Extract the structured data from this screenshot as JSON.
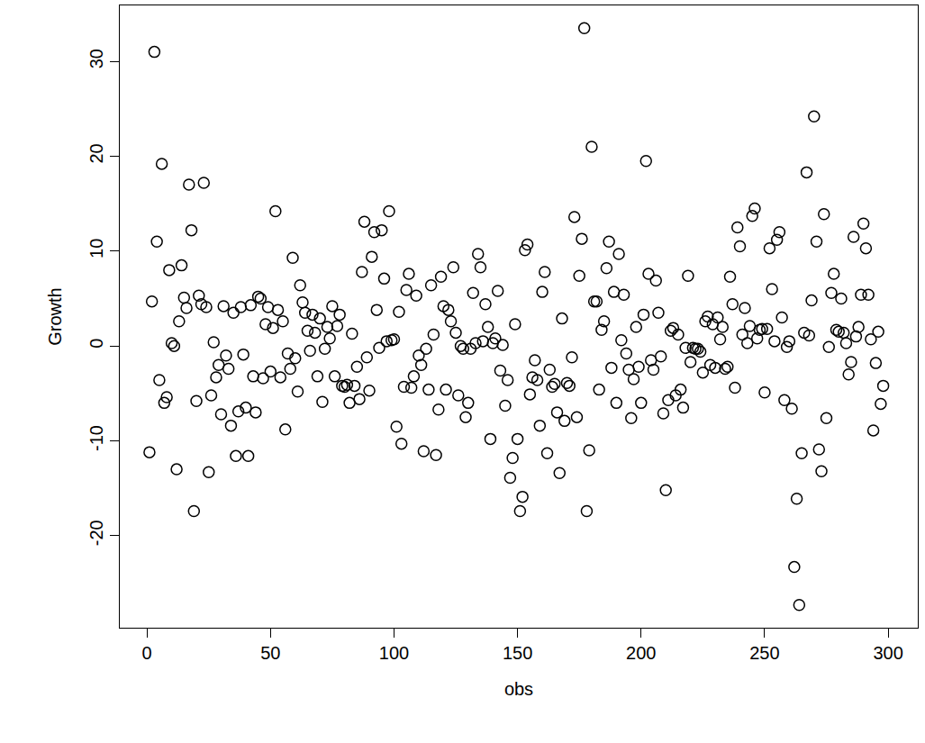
{
  "chart_data": {
    "type": "scatter",
    "x_label": "obs",
    "y_label": "Growth",
    "x": [
      1,
      2,
      3,
      4,
      5,
      6,
      7,
      8,
      9,
      10,
      11,
      12,
      13,
      14,
      15,
      16,
      17,
      18,
      19,
      20,
      21,
      22,
      23,
      24,
      25,
      26,
      27,
      28,
      29,
      30,
      31,
      32,
      33,
      34,
      35,
      36,
      37,
      38,
      39,
      40,
      41,
      42,
      43,
      44,
      45,
      46,
      47,
      48,
      49,
      50,
      51,
      52,
      53,
      54,
      55,
      56,
      57,
      58,
      59,
      60,
      61,
      62,
      63,
      64,
      65,
      66,
      67,
      68,
      69,
      70,
      71,
      72,
      73,
      74,
      75,
      76,
      77,
      78,
      79,
      80,
      81,
      82,
      83,
      84,
      85,
      86,
      87,
      88,
      89,
      90,
      91,
      92,
      93,
      94,
      95,
      96,
      97,
      98,
      99,
      100,
      101,
      102,
      103,
      104,
      105,
      106,
      107,
      108,
      109,
      110,
      111,
      112,
      113,
      114,
      115,
      116,
      117,
      118,
      119,
      120,
      121,
      122,
      123,
      124,
      125,
      126,
      127,
      128,
      129,
      130,
      131,
      132,
      133,
      134,
      135,
      136,
      137,
      138,
      139,
      140,
      141,
      142,
      143,
      144,
      145,
      146,
      147,
      148,
      149,
      150,
      151,
      152,
      153,
      154,
      155,
      156,
      157,
      158,
      159,
      160,
      161,
      162,
      163,
      164,
      165,
      166,
      167,
      168,
      169,
      170,
      171,
      172,
      173,
      174,
      175,
      176,
      177,
      178,
      179,
      180,
      181,
      182,
      183,
      184,
      185,
      186,
      187,
      188,
      189,
      190,
      191,
      192,
      193,
      194,
      195,
      196,
      197,
      198,
      199,
      200,
      201,
      202,
      203,
      204,
      205,
      206,
      207,
      208,
      209,
      210,
      211,
      212,
      213,
      214,
      215,
      216,
      217,
      218,
      219,
      220,
      221,
      222,
      223,
      224,
      225,
      226,
      227,
      228,
      229,
      230,
      231,
      232,
      233,
      234,
      235,
      236,
      237,
      238,
      239,
      240,
      241,
      242,
      243,
      244,
      245,
      246,
      247,
      248,
      249,
      250,
      251,
      252,
      253,
      254,
      255,
      256,
      257,
      258,
      259,
      260,
      261,
      262,
      263,
      264,
      265,
      266,
      267,
      268,
      269,
      270,
      271,
      272,
      273,
      274,
      275,
      276,
      277,
      278,
      279,
      280,
      281,
      282,
      283,
      284,
      285,
      286,
      287,
      288,
      289,
      290,
      291,
      292,
      293,
      294,
      295,
      296,
      297,
      298
    ],
    "values": [
      -11.2,
      4.7,
      31,
      11,
      -3.6,
      19.2,
      -6,
      -5.4,
      8,
      0.3,
      0,
      -13,
      2.6,
      8.5,
      5.1,
      4,
      17,
      12.2,
      -17.4,
      -5.8,
      5.3,
      4.4,
      17.2,
      4.1,
      -13.3,
      -5.2,
      0.4,
      -3.3,
      -2,
      -7.2,
      4.2,
      -1,
      -2.4,
      -8.4,
      3.5,
      -11.6,
      -6.9,
      4.1,
      -0.9,
      -6.5,
      -11.6,
      4.3,
      -3.2,
      -7,
      5.2,
      5,
      -3.4,
      2.3,
      4.1,
      -2.7,
      1.9,
      14.2,
      3.8,
      -3.3,
      2.6,
      -8.8,
      -0.8,
      -2.4,
      9.3,
      -1.3,
      -4.8,
      6.4,
      4.6,
      3.5,
      1.6,
      -0.5,
      3.3,
      1.4,
      -3.2,
      2.9,
      -5.9,
      -0.3,
      2,
      0.8,
      4.2,
      -3.2,
      2.1,
      3.3,
      -4.2,
      -4.3,
      -4.1,
      -6,
      1.3,
      -4.2,
      -2.2,
      -5.6,
      7.8,
      13.1,
      -1.2,
      -4.7,
      9.4,
      12,
      3.8,
      -0.2,
      12.2,
      7.1,
      0.5,
      14.2,
      0.6,
      0.7,
      -8.5,
      3.6,
      -10.3,
      -4.3,
      5.9,
      7.6,
      -4.4,
      -3.2,
      5.3,
      -1,
      -2,
      -11.1,
      -0.3,
      -4.6,
      6.4,
      1.2,
      -11.5,
      -6.7,
      7.3,
      4.2,
      -4.6,
      3.8,
      2.6,
      8.3,
      1.4,
      -5.2,
      0,
      -0.3,
      -7.5,
      -6,
      -0.3,
      5.6,
      0.3,
      9.7,
      8.3,
      0.5,
      4.4,
      2,
      -9.8,
      0.3,
      0.8,
      5.8,
      -2.6,
      0.1,
      -6.3,
      -3.6,
      -13.9,
      -11.8,
      2.3,
      -9.8,
      -17.4,
      -15.9,
      10.1,
      10.7,
      -5.1,
      -3.3,
      -1.5,
      -3.6,
      -8.4,
      5.7,
      7.8,
      -11.3,
      -2.5,
      -4.3,
      -4,
      -7,
      -13.4,
      2.9,
      -7.9,
      -3.9,
      -4.2,
      -1.2,
      13.6,
      -7.5,
      7.4,
      11.3,
      33.5,
      -17.4,
      -11,
      21,
      4.7,
      4.7,
      -4.6,
      1.7,
      2.6,
      8.2,
      11,
      -2.3,
      5.7,
      -6,
      9.7,
      0.6,
      5.4,
      -0.8,
      -2.5,
      -7.6,
      -3.5,
      2,
      -2.2,
      -6,
      3.3,
      19.5,
      7.6,
      -1.5,
      -2.5,
      6.9,
      3.5,
      -1.1,
      -7.1,
      -15.2,
      -5.7,
      1.6,
      1.9,
      -5.2,
      1.2,
      -4.6,
      -6.5,
      -0.2,
      7.4,
      -1.7,
      -0.2,
      -0.3,
      -0.3,
      -0.6,
      -2.8,
      2.6,
      3.1,
      -2,
      2.3,
      -2.3,
      3,
      0.7,
      2,
      -2.4,
      -2.2,
      7.3,
      4.4,
      -4.4,
      12.5,
      10.5,
      1.2,
      4,
      0.3,
      2.1,
      13.7,
      14.5,
      0.8,
      1.7,
      1.8,
      -4.9,
      1.8,
      10.3,
      6,
      0.5,
      11.2,
      12,
      3,
      -5.7,
      -0.1,
      0.5,
      -6.6,
      -23.3,
      -16.1,
      -27.3,
      -11.3,
      1.4,
      18.3,
      1.1,
      4.8,
      24.2,
      11,
      -10.9,
      -13.2,
      13.9,
      -7.6,
      -0.1,
      5.6,
      7.6,
      1.7,
      1.5,
      5,
      1.4,
      0.3,
      -3,
      -1.7,
      11.5,
      1,
      2,
      5.4,
      12.9,
      10.3,
      5.4,
      0.7,
      -8.9,
      -1.8,
      1.5,
      -6.1,
      -4.2
    ],
    "xlim": [
      -11,
      312
    ],
    "ylim": [
      -29.7,
      35.9
    ],
    "xticks": [
      0,
      50,
      100,
      150,
      200,
      250,
      300
    ],
    "yticks": [
      -20,
      -10,
      0,
      10,
      20,
      30
    ],
    "color": "#000000",
    "marker": "circle-open",
    "grid": false
  }
}
